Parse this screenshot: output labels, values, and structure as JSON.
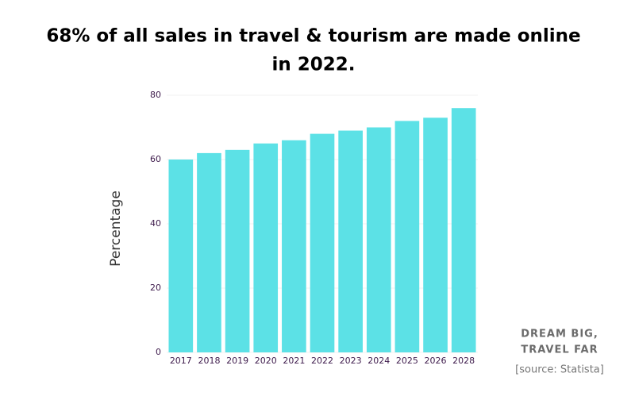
{
  "chart_data": {
    "type": "bar",
    "title": [
      "68% of all sales in travel & tourism are made online",
      "in 2022."
    ],
    "y_label": "Percentage",
    "categories": [
      "2017",
      "2018",
      "2019",
      "2020",
      "2021",
      "2022",
      "2023",
      "2024",
      "2025",
      "2026",
      "2028"
    ],
    "values": [
      60,
      62,
      63,
      65,
      66,
      68,
      69,
      70,
      72,
      73,
      76
    ],
    "color": "#5ce1e6",
    "ylim": [
      0,
      80
    ],
    "yticks": [
      0,
      20,
      40,
      60,
      80
    ],
    "grid": true,
    "annotations": [
      "DREAM BIG,",
      "TRAVEL FAR"
    ],
    "source": "[source: Statista]"
  }
}
